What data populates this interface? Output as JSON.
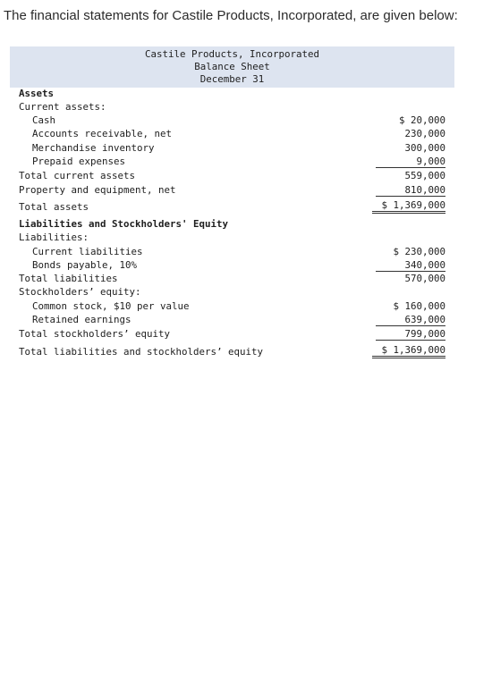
{
  "intro": "The financial statements for Castile Products, Incorporated, are given below:",
  "header": {
    "company": "Castile Products, Incorporated",
    "statement": "Balance Sheet",
    "date": "December 31"
  },
  "assets": {
    "heading": "Assets",
    "current_heading": "Current assets:",
    "cash": {
      "label": "Cash",
      "amount": "$ 20,000"
    },
    "ar": {
      "label": "Accounts receivable, net",
      "amount": "230,000"
    },
    "inventory": {
      "label": "Merchandise inventory",
      "amount": "300,000"
    },
    "prepaid": {
      "label": "Prepaid expenses",
      "amount": "9,000"
    },
    "total_current": {
      "label": "Total current assets",
      "amount": "559,000"
    },
    "ppe": {
      "label": "Property and equipment, net",
      "amount": "810,000"
    },
    "total": {
      "label": "Total assets",
      "amount": "$ 1,369,000"
    }
  },
  "liabilities_equity": {
    "heading": "Liabilities and Stockholders' Equity",
    "liabilities_heading": "Liabilities:",
    "current_liabilities": {
      "label": "Current liabilities",
      "amount": "$ 230,000"
    },
    "bonds": {
      "label": "Bonds payable, 10%",
      "amount": "340,000"
    },
    "total_liabilities": {
      "label": "Total liabilities",
      "amount": "570,000"
    },
    "equity_heading": "Stockholders’ equity:",
    "common_stock": {
      "label": "Common stock, $10 per value",
      "amount": "$ 160,000"
    },
    "retained": {
      "label": "Retained earnings",
      "amount": "639,000"
    },
    "total_equity": {
      "label": "Total stockholders’ equity",
      "amount": "799,000"
    },
    "total": {
      "label": "Total liabilities and stockholders’ equity",
      "amount": "$ 1,369,000"
    }
  }
}
